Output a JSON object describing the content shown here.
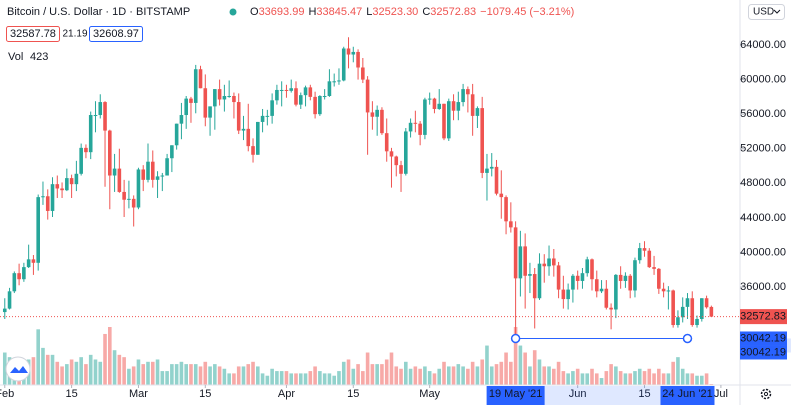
{
  "chart_data": {
    "type": "candlestick",
    "title": "Bitcoin / U.S. Dollar · 1D · BITSTAMP",
    "ohlc": [
      {
        "label": "O",
        "value": "33693.99"
      },
      {
        "label": "H",
        "value": "33845.47"
      },
      {
        "label": "L",
        "value": "32523.30"
      },
      {
        "label": "C",
        "value": "32572.83"
      }
    ],
    "change": "−1079.45 (−3.21%)",
    "bid": "32587.78",
    "spread": "21.19",
    "ask": "32608.97",
    "volume_title": "Vol",
    "volume_last": "423",
    "currency": "USD",
    "up_color": "#26a69a",
    "down_color": "#ef5350",
    "measure_color": "#2962ff",
    "xlim": [
      "2021-01-31",
      "2021-07-05"
    ],
    "ylim": [
      24660,
      69210
    ],
    "yticks": [
      {
        "value": 36000,
        "label": "36000.00"
      },
      {
        "value": 40000,
        "label": "40000.00"
      },
      {
        "value": 44000,
        "label": "44000.00"
      },
      {
        "value": 48000,
        "label": "48000.00"
      },
      {
        "value": 52000,
        "label": "52000.00"
      },
      {
        "value": 56000,
        "label": "56000.00"
      },
      {
        "value": 60000,
        "label": "60000.00"
      },
      {
        "value": 64000,
        "label": "64000.00"
      }
    ],
    "xticks": [
      {
        "value": "2021-02-01",
        "label": "Feb"
      },
      {
        "value": "2021-02-15",
        "label": "15"
      },
      {
        "value": "2021-03-01",
        "label": "Mar"
      },
      {
        "value": "2021-03-15",
        "label": "15"
      },
      {
        "value": "2021-04-01",
        "label": "Apr"
      },
      {
        "value": "2021-04-15",
        "label": "15"
      },
      {
        "value": "2021-05-01",
        "label": "May"
      },
      {
        "value": "2021-06-01",
        "label": "Jun"
      },
      {
        "value": "2021-06-15",
        "label": "15"
      },
      {
        "value": "2021-07-01",
        "label": "Jul"
      }
    ],
    "measure": {
      "from": "2021-05-19",
      "to": "2021-06-24",
      "value": 30042.19,
      "from_label": "19 May '21",
      "to_label": "24 Jun '21"
    },
    "x": [
      "2021-02-01",
      "2021-02-02",
      "2021-02-03",
      "2021-02-04",
      "2021-02-05",
      "2021-02-06",
      "2021-02-07",
      "2021-02-08",
      "2021-02-09",
      "2021-02-10",
      "2021-02-11",
      "2021-02-12",
      "2021-02-13",
      "2021-02-14",
      "2021-02-15",
      "2021-02-16",
      "2021-02-17",
      "2021-02-18",
      "2021-02-19",
      "2021-02-20",
      "2021-02-21",
      "2021-02-22",
      "2021-02-23",
      "2021-02-24",
      "2021-02-25",
      "2021-02-26",
      "2021-02-27",
      "2021-02-28",
      "2021-03-01",
      "2021-03-02",
      "2021-03-03",
      "2021-03-04",
      "2021-03-05",
      "2021-03-06",
      "2021-03-07",
      "2021-03-08",
      "2021-03-09",
      "2021-03-10",
      "2021-03-11",
      "2021-03-12",
      "2021-03-13",
      "2021-03-14",
      "2021-03-15",
      "2021-03-16",
      "2021-03-17",
      "2021-03-18",
      "2021-03-19",
      "2021-03-20",
      "2021-03-21",
      "2021-03-22",
      "2021-03-23",
      "2021-03-24",
      "2021-03-25",
      "2021-03-26",
      "2021-03-27",
      "2021-03-28",
      "2021-03-29",
      "2021-03-30",
      "2021-03-31",
      "2021-04-01",
      "2021-04-02",
      "2021-04-03",
      "2021-04-04",
      "2021-04-05",
      "2021-04-06",
      "2021-04-07",
      "2021-04-08",
      "2021-04-09",
      "2021-04-10",
      "2021-04-11",
      "2021-04-12",
      "2021-04-13",
      "2021-04-14",
      "2021-04-15",
      "2021-04-16",
      "2021-04-17",
      "2021-04-18",
      "2021-04-19",
      "2021-04-20",
      "2021-04-21",
      "2021-04-22",
      "2021-04-23",
      "2021-04-24",
      "2021-04-25",
      "2021-04-26",
      "2021-04-27",
      "2021-04-28",
      "2021-04-29",
      "2021-04-30",
      "2021-05-01",
      "2021-05-02",
      "2021-05-03",
      "2021-05-04",
      "2021-05-05",
      "2021-05-06",
      "2021-05-07",
      "2021-05-08",
      "2021-05-09",
      "2021-05-10",
      "2021-05-11",
      "2021-05-12",
      "2021-05-13",
      "2021-05-14",
      "2021-05-15",
      "2021-05-16",
      "2021-05-17",
      "2021-05-18",
      "2021-05-19",
      "2021-05-20",
      "2021-05-21",
      "2021-05-22",
      "2021-05-23",
      "2021-05-24",
      "2021-05-25",
      "2021-05-26",
      "2021-05-27",
      "2021-05-28",
      "2021-05-29",
      "2021-05-30",
      "2021-05-31",
      "2021-06-01",
      "2021-06-02",
      "2021-06-03",
      "2021-06-04",
      "2021-06-05",
      "2021-06-06",
      "2021-06-07",
      "2021-06-08",
      "2021-06-09",
      "2021-06-10",
      "2021-06-11",
      "2021-06-12",
      "2021-06-13",
      "2021-06-14",
      "2021-06-15",
      "2021-06-16",
      "2021-06-17",
      "2021-06-18",
      "2021-06-19",
      "2021-06-20",
      "2021-06-21",
      "2021-06-22",
      "2021-06-23",
      "2021-06-24",
      "2021-06-25",
      "2021-06-26",
      "2021-06-27",
      "2021-06-28",
      "2021-06-29"
    ],
    "open": [
      33100,
      33500,
      35500,
      37600,
      36900,
      38300,
      39200,
      38800,
      46400,
      46500,
      44800,
      47900,
      47400,
      47200,
      48600,
      47900,
      49100,
      52100,
      51600,
      55900,
      55900,
      57400,
      54100,
      48900,
      49700,
      47000,
      46100,
      46200,
      45200,
      49600,
      48400,
      50500,
      48400,
      48800,
      48900,
      50900,
      52400,
      54900,
      55900,
      57800,
      57300,
      61200,
      59000,
      55600,
      56900,
      58900,
      57700,
      58100,
      58100,
      57400,
      54100,
      54300,
      52300,
      51300,
      55100,
      55800,
      55800,
      57600,
      58800,
      58800,
      58700,
      59000,
      57100,
      58200,
      59100,
      58000,
      56000,
      58100,
      58100,
      59800,
      59800,
      59900,
      63600,
      62900,
      63200,
      61400,
      60000,
      56200,
      55700,
      56500,
      53800,
      51700,
      51100,
      50100,
      49100,
      54000,
      55000,
      54900,
      53600,
      57700,
      57800,
      56600,
      57200,
      53200,
      57500,
      56400,
      57400,
      58900,
      58300,
      55800,
      56700,
      49200,
      49700,
      49900,
      46800,
      46400,
      43600,
      42900,
      37000,
      40700,
      37300,
      37500,
      34700,
      38700,
      38400,
      39300,
      38500,
      35700,
      34600,
      35700,
      37300,
      36700,
      37600,
      39200,
      36900,
      35500,
      35800,
      33600,
      33400,
      37400,
      36700,
      37300,
      35600,
      39100,
      40500,
      40200,
      38300,
      38100,
      35800,
      35500,
      35600,
      31600,
      32500,
      33700,
      34700,
      31600,
      32300,
      34700,
      33693.99
    ],
    "high": [
      34700,
      35900,
      37800,
      38700,
      38800,
      40900,
      39700,
      46700,
      48200,
      47300,
      48700,
      48900,
      48100,
      49700,
      49000,
      50600,
      52600,
      52500,
      56300,
      57500,
      58300,
      57500,
      54200,
      51400,
      52000,
      48400,
      48300,
      46600,
      49800,
      50100,
      52600,
      51800,
      49400,
      49200,
      51400,
      52400,
      54900,
      57300,
      58100,
      58000,
      61700,
      61600,
      60600,
      56900,
      58900,
      60000,
      59400,
      59900,
      58500,
      58400,
      55800,
      57200,
      53200,
      55100,
      56600,
      56500,
      58400,
      59400,
      59800,
      59400,
      60000,
      59800,
      58500,
      59300,
      59400,
      58600,
      58200,
      58900,
      61200,
      60700,
      61300,
      63800,
      64900,
      63800,
      63500,
      62500,
      60400,
      57500,
      57000,
      56800,
      55500,
      52100,
      51200,
      50600,
      54400,
      55500,
      56400,
      55200,
      57900,
      58500,
      57900,
      58900,
      57200,
      57800,
      58300,
      58600,
      59500,
      59200,
      59500,
      56900,
      58000,
      51400,
      51500,
      50700,
      49500,
      46600,
      45800,
      43600,
      42500,
      42200,
      38800,
      38200,
      39900,
      39800,
      40800,
      40400,
      38900,
      37300,
      36400,
      37500,
      37900,
      38200,
      39500,
      39300,
      37900,
      36800,
      36800,
      34100,
      37500,
      38400,
      37700,
      37500,
      39400,
      41100,
      41300,
      40500,
      39600,
      38200,
      36500,
      36100,
      35700,
      33300,
      34800,
      35300,
      35500,
      32700,
      34700,
      35000,
      33845.47
    ],
    "low": [
      32300,
      33400,
      35300,
      36200,
      36600,
      38200,
      37400,
      37900,
      45500,
      43800,
      44100,
      46300,
      46300,
      47100,
      46300,
      47100,
      48900,
      50900,
      50800,
      53900,
      55500,
      47600,
      45000,
      47000,
      46900,
      44100,
      45100,
      43000,
      45000,
      47100,
      48100,
      47500,
      46300,
      47100,
      48900,
      49300,
      51900,
      53100,
      54300,
      55000,
      56100,
      59000,
      54600,
      53500,
      54200,
      57000,
      56300,
      57900,
      55500,
      53700,
      53000,
      51700,
      50400,
      51300,
      53900,
      54700,
      54900,
      57100,
      56900,
      57900,
      58500,
      56900,
      56600,
      56900,
      57600,
      55500,
      55800,
      57700,
      58000,
      59200,
      59400,
      59800,
      61300,
      62000,
      60000,
      59600,
      51300,
      54200,
      53500,
      53600,
      50500,
      47500,
      48800,
      47000,
      48900,
      53300,
      53900,
      52400,
      53100,
      57100,
      56100,
      56500,
      53000,
      52900,
      55300,
      55300,
      56900,
      56200,
      53500,
      54400,
      48600,
      46000,
      48800,
      46600,
      43900,
      42100,
      42300,
      30042.19,
      34900,
      33500,
      35300,
      31200,
      34500,
      36500,
      37300,
      37200,
      34700,
      33500,
      33400,
      34200,
      35700,
      35800,
      37200,
      35600,
      34800,
      35300,
      33400,
      31100,
      32400,
      35800,
      35900,
      34700,
      34800,
      38700,
      39500,
      38200,
      37400,
      35200,
      34800,
      33400,
      31300,
      31300,
      31900,
      32300,
      31400,
      31300,
      32000,
      33500,
      32523.3
    ],
    "close": [
      33500,
      35500,
      37600,
      36900,
      38300,
      39200,
      38800,
      46400,
      46500,
      44800,
      47900,
      47400,
      47200,
      48600,
      47900,
      49100,
      52100,
      51600,
      55900,
      55900,
      57400,
      54100,
      48900,
      49700,
      47000,
      46100,
      46200,
      45200,
      49600,
      48400,
      50500,
      48400,
      48800,
      48900,
      50900,
      52400,
      54900,
      55900,
      57800,
      57300,
      61200,
      59000,
      55600,
      56900,
      58900,
      57700,
      58100,
      58100,
      57400,
      54100,
      54300,
      52300,
      51300,
      55100,
      55800,
      55800,
      57600,
      58800,
      58800,
      58700,
      59000,
      57100,
      58200,
      59100,
      58000,
      56000,
      58100,
      58100,
      59800,
      59800,
      59900,
      63600,
      62900,
      63200,
      61400,
      60000,
      56200,
      55700,
      56500,
      53800,
      51700,
      51100,
      50100,
      49100,
      54000,
      55000,
      54900,
      53600,
      57700,
      57800,
      56600,
      57200,
      53200,
      57500,
      56400,
      57400,
      58900,
      58300,
      55800,
      56700,
      49200,
      49700,
      49900,
      46800,
      46400,
      43600,
      42900,
      37000,
      40700,
      37300,
      37500,
      34700,
      38700,
      38400,
      39300,
      38500,
      35700,
      34600,
      35700,
      37300,
      36700,
      37600,
      39200,
      36900,
      35500,
      35800,
      33600,
      33400,
      37400,
      36700,
      37300,
      35600,
      39100,
      40500,
      40200,
      38300,
      38100,
      35800,
      35500,
      35600,
      31600,
      32500,
      33700,
      34700,
      31600,
      32300,
      34700,
      33652.28,
      32572.83
    ],
    "volume": [
      14000,
      12000,
      11000,
      12000,
      10000,
      11000,
      12000,
      24000,
      16000,
      13000,
      13000,
      10000,
      8000,
      9000,
      11000,
      10000,
      12000,
      9000,
      13000,
      11000,
      10000,
      22000,
      25000,
      15000,
      13000,
      12000,
      7000,
      8000,
      11000,
      9000,
      10000,
      10000,
      11000,
      6000,
      6000,
      9000,
      9000,
      10000,
      9000,
      9000,
      9000,
      8000,
      10000,
      8000,
      9000,
      8000,
      7000,
      5000,
      5000,
      8000,
      8000,
      9000,
      10000,
      8000,
      5000,
      4000,
      7000,
      6000,
      6000,
      6000,
      5000,
      5000,
      5000,
      5000,
      6000,
      8000,
      6000,
      5000,
      5000,
      4000,
      6000,
      10000,
      11000,
      7000,
      9000,
      6000,
      14000,
      9000,
      9000,
      9000,
      11000,
      14000,
      8000,
      7000,
      10000,
      7000,
      8000,
      7000,
      8000,
      6000,
      5000,
      7000,
      10000,
      8000,
      8000,
      9000,
      8000,
      7000,
      10000,
      8000,
      11000,
      17000,
      8000,
      9000,
      10000,
      14000,
      10000,
      25000,
      17000,
      14000,
      8000,
      15000,
      11000,
      8000,
      8000,
      7000,
      10000,
      6000,
      5000,
      6000,
      7000,
      5000,
      5000,
      7000,
      5000,
      3000,
      6000,
      9000,
      8000,
      6000,
      5000,
      5000,
      6000,
      7000,
      6000,
      7000,
      5000,
      7000,
      5000,
      5000,
      10000,
      12000,
      7000,
      5000,
      5000,
      4000,
      4000,
      5000,
      423
    ]
  }
}
